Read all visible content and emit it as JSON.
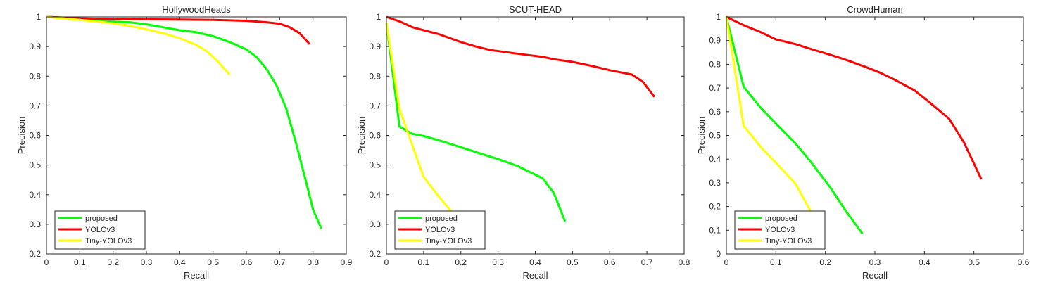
{
  "chart_data": [
    {
      "type": "line",
      "title": "HollywoodHeads",
      "xlabel": "Recall",
      "ylabel": "Precision",
      "xlim": [
        0,
        0.9
      ],
      "ylim": [
        0.2,
        1
      ],
      "xticks": [
        "0",
        "0.1",
        "0.2",
        "0.3",
        "0.4",
        "0.5",
        "0.6",
        "0.7",
        "0.8",
        "0.9"
      ],
      "yticks": [
        "0.2",
        "0.3",
        "0.4",
        "0.5",
        "0.6",
        "0.7",
        "0.8",
        "0.9",
        "1"
      ],
      "legend_position": "bottom-left",
      "series": [
        {
          "name": "proposed",
          "color": "#00ff00",
          "points": [
            [
              0,
              1
            ],
            [
              0.1,
              0.995
            ],
            [
              0.18,
              0.985
            ],
            [
              0.25,
              0.982
            ],
            [
              0.3,
              0.975
            ],
            [
              0.35,
              0.965
            ],
            [
              0.4,
              0.955
            ],
            [
              0.45,
              0.948
            ],
            [
              0.5,
              0.935
            ],
            [
              0.55,
              0.915
            ],
            [
              0.6,
              0.89
            ],
            [
              0.63,
              0.865
            ],
            [
              0.66,
              0.825
            ],
            [
              0.69,
              0.77
            ],
            [
              0.72,
              0.69
            ],
            [
              0.75,
              0.57
            ],
            [
              0.78,
              0.44
            ],
            [
              0.8,
              0.35
            ],
            [
              0.825,
              0.285
            ]
          ]
        },
        {
          "name": "YOLOv3",
          "color": "#ff0000",
          "points": [
            [
              0,
              1
            ],
            [
              0.1,
              0.995
            ],
            [
              0.2,
              0.993
            ],
            [
              0.3,
              0.992
            ],
            [
              0.4,
              0.991
            ],
            [
              0.5,
              0.99
            ],
            [
              0.6,
              0.987
            ],
            [
              0.66,
              0.982
            ],
            [
              0.7,
              0.977
            ],
            [
              0.73,
              0.965
            ],
            [
              0.76,
              0.945
            ],
            [
              0.79,
              0.908
            ]
          ]
        },
        {
          "name": "Tiny-YOLOv3",
          "color": "#ffff00",
          "points": [
            [
              0,
              1
            ],
            [
              0.05,
              0.995
            ],
            [
              0.1,
              0.99
            ],
            [
              0.15,
              0.985
            ],
            [
              0.2,
              0.978
            ],
            [
              0.25,
              0.97
            ],
            [
              0.3,
              0.958
            ],
            [
              0.35,
              0.945
            ],
            [
              0.4,
              0.928
            ],
            [
              0.45,
              0.905
            ],
            [
              0.48,
              0.885
            ],
            [
              0.51,
              0.855
            ],
            [
              0.55,
              0.805
            ]
          ]
        }
      ]
    },
    {
      "type": "line",
      "title": "SCUT-HEAD",
      "xlabel": "Recall",
      "ylabel": "Precision",
      "xlim": [
        0,
        0.8
      ],
      "ylim": [
        0.2,
        1
      ],
      "xticks": [
        "0",
        "0.1",
        "0.2",
        "0.3",
        "0.4",
        "0.5",
        "0.6",
        "0.7",
        "0.8"
      ],
      "yticks": [
        "0.2",
        "0.3",
        "0.4",
        "0.5",
        "0.6",
        "0.7",
        "0.8",
        "0.9",
        "1"
      ],
      "legend_position": "bottom-left",
      "series": [
        {
          "name": "proposed",
          "color": "#00ff00",
          "points": [
            [
              0,
              0.98
            ],
            [
              0.035,
              0.63
            ],
            [
              0.07,
              0.605
            ],
            [
              0.1,
              0.598
            ],
            [
              0.15,
              0.58
            ],
            [
              0.2,
              0.56
            ],
            [
              0.25,
              0.54
            ],
            [
              0.3,
              0.52
            ],
            [
              0.35,
              0.498
            ],
            [
              0.38,
              0.48
            ],
            [
              0.42,
              0.455
            ],
            [
              0.45,
              0.405
            ],
            [
              0.48,
              0.31
            ]
          ]
        },
        {
          "name": "YOLOv3",
          "color": "#ff0000",
          "points": [
            [
              0,
              1
            ],
            [
              0.035,
              0.985
            ],
            [
              0.07,
              0.965
            ],
            [
              0.1,
              0.955
            ],
            [
              0.14,
              0.942
            ],
            [
              0.2,
              0.915
            ],
            [
              0.24,
              0.9
            ],
            [
              0.28,
              0.888
            ],
            [
              0.35,
              0.876
            ],
            [
              0.42,
              0.865
            ],
            [
              0.45,
              0.857
            ],
            [
              0.5,
              0.848
            ],
            [
              0.55,
              0.835
            ],
            [
              0.6,
              0.82
            ],
            [
              0.66,
              0.805
            ],
            [
              0.69,
              0.78
            ],
            [
              0.72,
              0.73
            ]
          ]
        },
        {
          "name": "Tiny-YOLOv3",
          "color": "#ffff00",
          "points": [
            [
              0,
              0.98
            ],
            [
              0.035,
              0.69
            ],
            [
              0.07,
              0.565
            ],
            [
              0.1,
              0.46
            ],
            [
              0.14,
              0.395
            ],
            [
              0.17,
              0.35
            ],
            [
              0.18,
              0.33
            ]
          ]
        }
      ]
    },
    {
      "type": "line",
      "title": "CrowdHuman",
      "xlabel": "Recall",
      "ylabel": "Precision",
      "xlim": [
        0,
        0.6
      ],
      "ylim": [
        0,
        1
      ],
      "xticks": [
        "0",
        "0.1",
        "0.2",
        "0.3",
        "0.4",
        "0.5",
        "0.6"
      ],
      "yticks": [
        "0",
        "0.1",
        "0.2",
        "0.3",
        "0.4",
        "0.5",
        "0.6",
        "0.7",
        "0.8",
        "0.9",
        "1"
      ],
      "legend_position": "bottom-left",
      "series": [
        {
          "name": "proposed",
          "color": "#00ff00",
          "points": [
            [
              0,
              1
            ],
            [
              0.035,
              0.705
            ],
            [
              0.07,
              0.615
            ],
            [
              0.1,
              0.55
            ],
            [
              0.14,
              0.465
            ],
            [
              0.17,
              0.39
            ],
            [
              0.21,
              0.28
            ],
            [
              0.24,
              0.185
            ],
            [
              0.275,
              0.085
            ]
          ]
        },
        {
          "name": "YOLOv3",
          "color": "#ff0000",
          "points": [
            [
              0,
              1
            ],
            [
              0.035,
              0.965
            ],
            [
              0.07,
              0.935
            ],
            [
              0.1,
              0.905
            ],
            [
              0.14,
              0.885
            ],
            [
              0.17,
              0.865
            ],
            [
              0.21,
              0.84
            ],
            [
              0.24,
              0.82
            ],
            [
              0.28,
              0.79
            ],
            [
              0.31,
              0.765
            ],
            [
              0.34,
              0.735
            ],
            [
              0.38,
              0.69
            ],
            [
              0.41,
              0.64
            ],
            [
              0.45,
              0.57
            ],
            [
              0.48,
              0.47
            ],
            [
              0.515,
              0.315
            ]
          ]
        },
        {
          "name": "Tiny-YOLOv3",
          "color": "#ffff00",
          "points": [
            [
              0,
              1
            ],
            [
              0.035,
              0.54
            ],
            [
              0.07,
              0.45
            ],
            [
              0.1,
              0.385
            ],
            [
              0.14,
              0.295
            ],
            [
              0.17,
              0.18
            ]
          ]
        }
      ]
    }
  ]
}
